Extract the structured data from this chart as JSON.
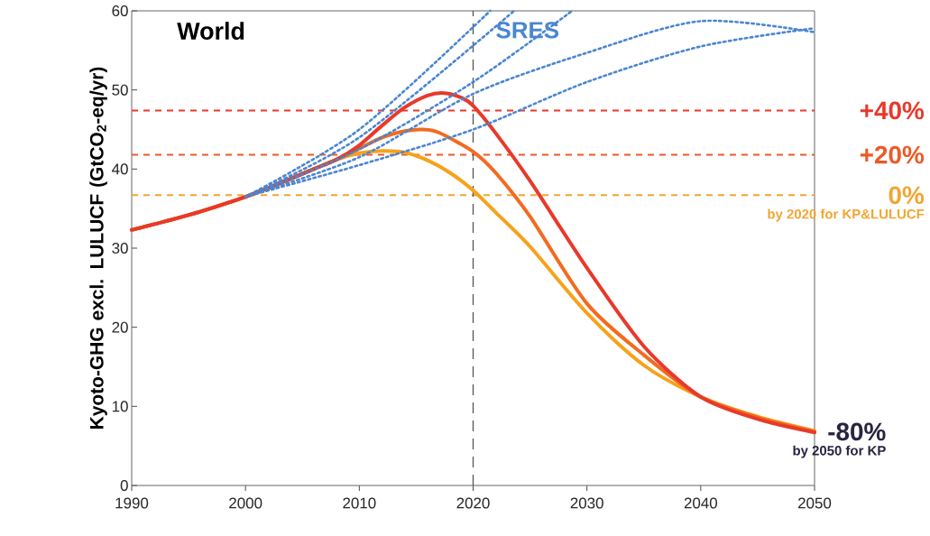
{
  "chart_data": {
    "type": "line",
    "title": "World",
    "ylabel": "Kyoto-GHG excl. LULUCF (GtCO$_{2}$-eq/yr)",
    "xlim": [
      1990,
      2050
    ],
    "xticks": [
      1990,
      2000,
      2010,
      2020,
      2030,
      2040,
      2050
    ],
    "ylim": [
      0,
      60
    ],
    "yticks": [
      0,
      10,
      20,
      30,
      40,
      50,
      60
    ],
    "grid": false,
    "legend": false,
    "marker": "none",
    "series": [
      {
        "color": "#f7a21b",
        "line_style": "solid",
        "x": [
          1990,
          1993,
          1996,
          2000,
          2003,
          2006,
          2008,
          2010,
          2012,
          2014,
          2016,
          2018,
          2020,
          2022,
          2025,
          2030,
          2035,
          2040,
          2045,
          2050
        ],
        "values": [
          32.3,
          33.4,
          34.6,
          36.5,
          38.2,
          40.0,
          41.2,
          42.0,
          42.3,
          42.1,
          41.1,
          39.5,
          37.3,
          34.5,
          30.2,
          21.8,
          15.2,
          11.2,
          8.7,
          6.9
        ]
      },
      {
        "color": "#f26b21",
        "line_style": "solid",
        "x": [
          1990,
          1993,
          1996,
          2000,
          2003,
          2006,
          2008,
          2010,
          2012,
          2014,
          2015.5,
          2017,
          2020,
          2022,
          2025,
          2030,
          2035,
          2040,
          2045,
          2050
        ],
        "values": [
          32.3,
          33.4,
          34.6,
          36.5,
          38.2,
          40.0,
          41.2,
          42.6,
          44.0,
          44.8,
          45.0,
          44.6,
          42.2,
          39.5,
          34.0,
          23.0,
          16.5,
          11.2,
          8.6,
          6.8
        ]
      },
      {
        "color": "#e8392b",
        "line_style": "solid",
        "x": [
          1990,
          1993,
          1996,
          2000,
          2003,
          2006,
          2008,
          2010,
          2012,
          2014,
          2016,
          2017.5,
          2019,
          2020,
          2022,
          2025,
          2030,
          2035,
          2040,
          2045,
          2050
        ],
        "values": [
          32.3,
          33.4,
          34.6,
          36.5,
          38.2,
          40.0,
          41.2,
          43.0,
          45.5,
          47.8,
          49.3,
          49.6,
          49.0,
          48.0,
          44.5,
          38.5,
          27.5,
          17.6,
          11.2,
          8.4,
          6.7
        ]
      },
      {
        "color": "#4a86cf",
        "line_style": "dotted",
        "x": [
          2000,
          2010,
          2021.5
        ],
        "values": [
          36.5,
          45.0,
          60.0
        ]
      },
      {
        "color": "#4a86cf",
        "line_style": "dotted",
        "x": [
          2000,
          2010,
          2023.6
        ],
        "values": [
          36.5,
          44.0,
          60.0
        ]
      },
      {
        "name": "SRES",
        "color": "#4a86cf",
        "line_style": "dotted",
        "x": [
          2000,
          2010,
          2020,
          2028.7
        ],
        "values": [
          36.5,
          42.5,
          51.0,
          60.0
        ]
      },
      {
        "color": "#4a86cf",
        "line_style": "dotted",
        "x": [
          2000,
          2010,
          2020,
          2030,
          2040,
          2050
        ],
        "values": [
          36.5,
          41.5,
          49.5,
          54.7,
          58.7,
          57.3
        ]
      },
      {
        "color": "#4a86cf",
        "line_style": "dotted",
        "x": [
          2000,
          2010,
          2020,
          2030,
          2040,
          2050
        ],
        "values": [
          36.5,
          40.5,
          45.0,
          51.0,
          55.5,
          57.8
        ]
      }
    ],
    "ref_lines": [
      {
        "axis": "y",
        "value": 47.4,
        "color": "#e8392b",
        "line_style": "dashed"
      },
      {
        "axis": "y",
        "value": 41.8,
        "color": "#ec5a26",
        "line_style": "dashed"
      },
      {
        "axis": "y",
        "value": 36.7,
        "color": "#f2a531",
        "line_style": "dashed"
      },
      {
        "axis": "x",
        "value": 2020,
        "color": "#555555",
        "line_style": "dashed"
      }
    ],
    "annotations": [
      "+40%",
      "+20%",
      "0%",
      "by 2020 for KP&LULUCF",
      {
        "text": "-80%",
        "x": 2050,
        "y": 6.8
      },
      "by 2050 for KP"
    ]
  }
}
